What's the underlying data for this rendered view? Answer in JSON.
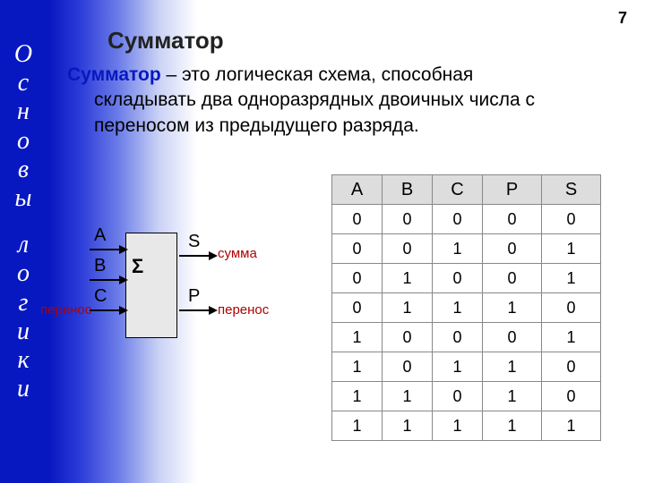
{
  "page": {
    "number": "7",
    "title": "Сумматор"
  },
  "sidebar": {
    "word1": [
      "О",
      "с",
      "н",
      "о",
      "в",
      "ы"
    ],
    "word2": [
      "л",
      "о",
      "г",
      "и",
      "к",
      "и"
    ]
  },
  "definition": {
    "term": "Сумматор",
    "line1_rest": " – это логическая схема, способная",
    "line2": "складывать два одноразрядных двоичных числа с",
    "line3": "переносом из предыдущего разряда."
  },
  "diagram": {
    "sigma": "Σ",
    "inputs": {
      "A": "A",
      "B": "B",
      "C": "C"
    },
    "outputs": {
      "S": "S",
      "P": "P"
    },
    "labels": {
      "sum": "сумма",
      "carry_in": "перенос",
      "carry_out": "перенос"
    }
  },
  "table": {
    "columns": [
      "A",
      "B",
      "C",
      "P",
      "S"
    ],
    "col_wide": [
      false,
      false,
      false,
      true,
      true
    ],
    "rows": [
      [
        "0",
        "0",
        "0",
        "0",
        "0"
      ],
      [
        "0",
        "0",
        "1",
        "0",
        "1"
      ],
      [
        "0",
        "1",
        "0",
        "0",
        "1"
      ],
      [
        "0",
        "1",
        "1",
        "1",
        "0"
      ],
      [
        "1",
        "0",
        "0",
        "0",
        "1"
      ],
      [
        "1",
        "0",
        "1",
        "1",
        "0"
      ],
      [
        "1",
        "1",
        "0",
        "1",
        "0"
      ],
      [
        "1",
        "1",
        "1",
        "1",
        "1"
      ]
    ],
    "header_bg": "#dddddd",
    "border_color": "#888888"
  }
}
